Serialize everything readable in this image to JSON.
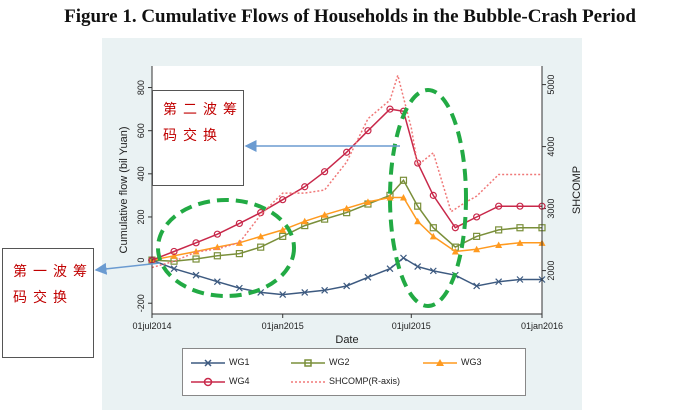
{
  "figure_title": "Figure 1. Cumulative Flows of Households in the Bubble-Crash Period",
  "annotations": {
    "second_wave": "第二波筹码交换",
    "first_wave": "第一波筹码交换"
  },
  "colors": {
    "WG1": "#3d5a80",
    "WG2": "#7a8f3a",
    "WG3": "#ff9a1f",
    "WG4": "#c8284a",
    "SHCOMP": "#f07878",
    "arrow": "#6b9bd1",
    "highlight": "#22aa44",
    "annotation_text": "#c00000"
  },
  "chart_data": {
    "type": "line",
    "xlabel": "Date",
    "ylabel": "Cumulative flow (bil Yuan)",
    "y2label": "SHCOMP",
    "x_ticks": [
      "01jul2014",
      "01jan2015",
      "01jul2015",
      "01jan2016"
    ],
    "x_range": [
      "2014-07-01",
      "2016-01-01"
    ],
    "ylim": [
      -250,
      900
    ],
    "y_ticks": [
      -200,
      0,
      200,
      400,
      600,
      800
    ],
    "y2lim": [
      1300,
      5300
    ],
    "y2_ticks": [
      2000,
      3000,
      4000,
      5000
    ],
    "legend_position": "bottom",
    "grid": false,
    "series": [
      {
        "name": "WG1",
        "axis": "left",
        "marker": "x",
        "x": [
          "2014-07-01",
          "2014-08-01",
          "2014-09-01",
          "2014-10-01",
          "2014-11-01",
          "2014-12-01",
          "2015-01-01",
          "2015-02-01",
          "2015-03-01",
          "2015-04-01",
          "2015-05-01",
          "2015-06-01",
          "2015-06-20",
          "2015-07-10",
          "2015-08-01",
          "2015-09-01",
          "2015-10-01",
          "2015-11-01",
          "2015-12-01",
          "2016-01-01"
        ],
        "values": [
          0,
          -40,
          -70,
          -100,
          -130,
          -150,
          -160,
          -150,
          -140,
          -120,
          -80,
          -40,
          10,
          -30,
          -50,
          -70,
          -120,
          -100,
          -90,
          -90
        ]
      },
      {
        "name": "WG2",
        "axis": "left",
        "marker": "square",
        "x": [
          "2014-07-01",
          "2014-08-01",
          "2014-09-01",
          "2014-10-01",
          "2014-11-01",
          "2014-12-01",
          "2015-01-01",
          "2015-02-01",
          "2015-03-01",
          "2015-04-01",
          "2015-05-01",
          "2015-06-01",
          "2015-06-20",
          "2015-07-10",
          "2015-08-01",
          "2015-09-01",
          "2015-10-01",
          "2015-11-01",
          "2015-12-01",
          "2016-01-01"
        ],
        "values": [
          0,
          -5,
          5,
          20,
          30,
          60,
          110,
          160,
          190,
          220,
          260,
          300,
          370,
          250,
          150,
          60,
          110,
          140,
          150,
          150
        ]
      },
      {
        "name": "WG3",
        "axis": "left",
        "marker": "triangle",
        "x": [
          "2014-07-01",
          "2014-08-01",
          "2014-09-01",
          "2014-10-01",
          "2014-11-01",
          "2014-12-01",
          "2015-01-01",
          "2015-02-01",
          "2015-03-01",
          "2015-04-01",
          "2015-05-01",
          "2015-06-01",
          "2015-06-20",
          "2015-07-10",
          "2015-08-01",
          "2015-09-01",
          "2015-10-01",
          "2015-11-01",
          "2015-12-01",
          "2016-01-01"
        ],
        "values": [
          0,
          20,
          40,
          60,
          80,
          110,
          140,
          180,
          210,
          240,
          270,
          290,
          290,
          180,
          110,
          40,
          50,
          70,
          80,
          80
        ]
      },
      {
        "name": "WG4",
        "axis": "left",
        "marker": "circle",
        "x": [
          "2014-07-01",
          "2014-08-01",
          "2014-09-01",
          "2014-10-01",
          "2014-11-01",
          "2014-12-01",
          "2015-01-01",
          "2015-02-01",
          "2015-03-01",
          "2015-04-01",
          "2015-05-01",
          "2015-06-01",
          "2015-06-20",
          "2015-07-10",
          "2015-08-01",
          "2015-09-01",
          "2015-10-01",
          "2015-11-01",
          "2015-12-01",
          "2016-01-01"
        ],
        "values": [
          0,
          40,
          80,
          120,
          170,
          220,
          280,
          340,
          410,
          500,
          600,
          700,
          690,
          450,
          300,
          150,
          200,
          250,
          250,
          250
        ]
      },
      {
        "name": "SHCOMP(R-axis)",
        "axis": "right",
        "style": "dotted",
        "x": [
          "2014-07-01",
          "2014-08-01",
          "2014-09-01",
          "2014-10-01",
          "2014-11-01",
          "2014-12-01",
          "2015-01-01",
          "2015-02-01",
          "2015-03-01",
          "2015-04-01",
          "2015-05-01",
          "2015-06-01",
          "2015-06-12",
          "2015-07-01",
          "2015-07-10",
          "2015-08-01",
          "2015-08-26",
          "2015-09-15",
          "2015-10-01",
          "2015-11-01",
          "2015-12-01",
          "2016-01-01"
        ],
        "values": [
          2050,
          2150,
          2300,
          2350,
          2450,
          2900,
          3250,
          3250,
          3300,
          3750,
          4450,
          4750,
          5150,
          4300,
          3700,
          3900,
          2950,
          3100,
          3200,
          3550,
          3550,
          3550
        ]
      }
    ]
  }
}
